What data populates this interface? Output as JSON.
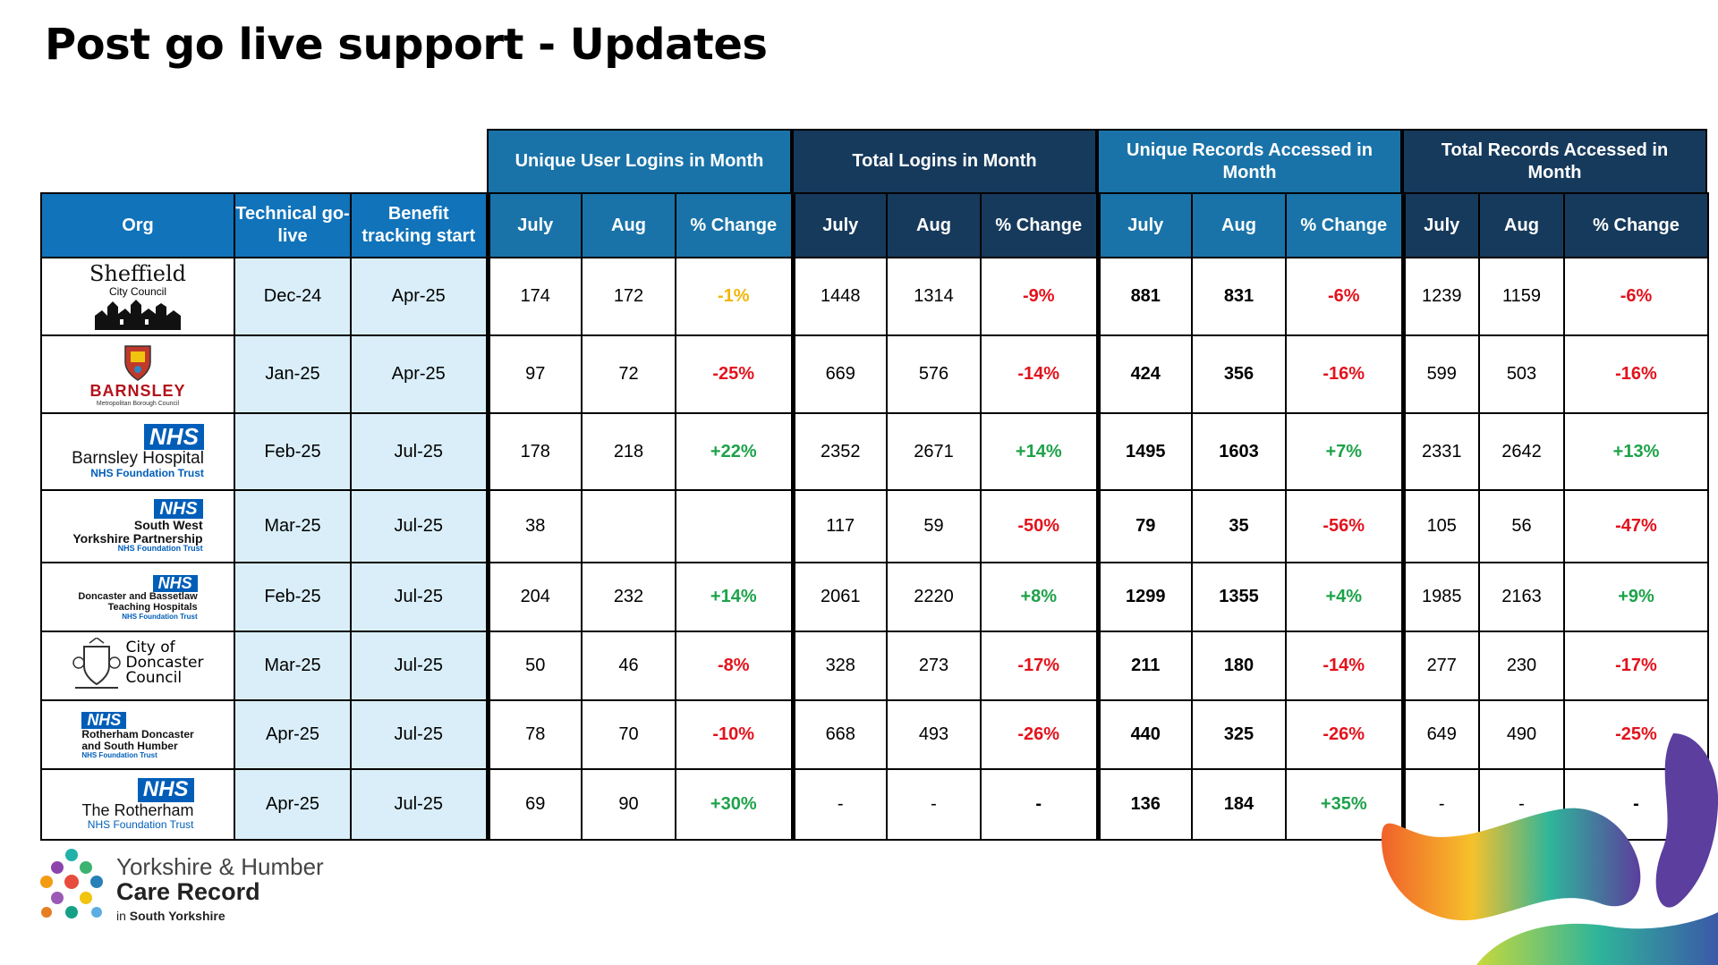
{
  "title": "Post go live support - Updates",
  "groups": {
    "unique_logins": "Unique User Logins in Month",
    "total_logins": "Total Logins in Month",
    "unique_records": "Unique Records Accessed in Month",
    "total_records": "Total Records Accessed in Month"
  },
  "columns": {
    "org": "Org",
    "technical": "Technical go-live",
    "benefit": "Benefit tracking start",
    "july": "July",
    "aug": "Aug",
    "change": "% Change"
  },
  "rows": [
    {
      "logo": {
        "line1": "Sheffield",
        "line2": "City Council"
      },
      "tech": "Dec-24",
      "benefit": "Apr-25",
      "ul_jul": "174",
      "ul_aug": "172",
      "ul_chg": "-1%",
      "tl_jul": "1448",
      "tl_aug": "1314",
      "tl_chg": "-9%",
      "ur_jul": "881",
      "ur_aug": "831",
      "ur_chg": "-6%",
      "tr_jul": "1239",
      "tr_aug": "1159",
      "tr_chg": "-6%"
    },
    {
      "logo": {
        "line1": "BARNSLEY",
        "line2": "Metropolitan Borough Council"
      },
      "tech": "Jan-25",
      "benefit": "Apr-25",
      "ul_jul": "97",
      "ul_aug": "72",
      "ul_chg": "-25%",
      "tl_jul": "669",
      "tl_aug": "576",
      "tl_chg": "-14%",
      "ur_jul": "424",
      "ur_aug": "356",
      "ur_chg": "-16%",
      "tr_jul": "599",
      "tr_aug": "503",
      "tr_chg": "-16%"
    },
    {
      "logo": {
        "nhs": "NHS",
        "line1": "Barnsley Hospital",
        "line2": "NHS Foundation Trust"
      },
      "tech": "Feb-25",
      "benefit": "Jul-25",
      "ul_jul": "178",
      "ul_aug": "218",
      "ul_chg": "+22%",
      "tl_jul": "2352",
      "tl_aug": "2671",
      "tl_chg": "+14%",
      "ur_jul": "1495",
      "ur_aug": "1603",
      "ur_chg": "+7%",
      "tr_jul": "2331",
      "tr_aug": "2642",
      "tr_chg": "+13%"
    },
    {
      "logo": {
        "nhs": "NHS",
        "line1": "South West",
        "line1b": "Yorkshire Partnership",
        "line2": "NHS Foundation Trust"
      },
      "tech": "Mar-25",
      "benefit": "Jul-25",
      "ul_jul": "38",
      "ul_aug": "",
      "ul_chg": "",
      "tl_jul": "117",
      "tl_aug": "59",
      "tl_chg": "-50%",
      "ur_jul": "79",
      "ur_aug": "35",
      "ur_chg": "-56%",
      "tr_jul": "105",
      "tr_aug": "56",
      "tr_chg": "-47%"
    },
    {
      "logo": {
        "nhs": "NHS",
        "line1": "Doncaster and Bassetlaw",
        "line1b": "Teaching Hospitals",
        "line2": "NHS Foundation Trust"
      },
      "tech": "Feb-25",
      "benefit": "Jul-25",
      "ul_jul": "204",
      "ul_aug": "232",
      "ul_chg": "+14%",
      "tl_jul": "2061",
      "tl_aug": "2220",
      "tl_chg": "+8%",
      "ur_jul": "1299",
      "ur_aug": "1355",
      "ur_chg": "+4%",
      "tr_jul": "1985",
      "tr_aug": "2163",
      "tr_chg": "+9%"
    },
    {
      "logo": {
        "line1": "City of",
        "line1b": "Doncaster",
        "line2": "Council"
      },
      "tech": "Mar-25",
      "benefit": "Jul-25",
      "ul_jul": "50",
      "ul_aug": "46",
      "ul_chg": "-8%",
      "tl_jul": "328",
      "tl_aug": "273",
      "tl_chg": "-17%",
      "ur_jul": "211",
      "ur_aug": "180",
      "ur_chg": "-14%",
      "tr_jul": "277",
      "tr_aug": "230",
      "tr_chg": "-17%"
    },
    {
      "logo": {
        "nhs": "NHS",
        "line1": "Rotherham Doncaster",
        "line1b": "and South Humber",
        "line2": "NHS Foundation Trust"
      },
      "tech": "Apr-25",
      "benefit": "Jul-25",
      "ul_jul": "78",
      "ul_aug": "70",
      "ul_chg": "-10%",
      "tl_jul": "668",
      "tl_aug": "493",
      "tl_chg": "-26%",
      "ur_jul": "440",
      "ur_aug": "325",
      "ur_chg": "-26%",
      "tr_jul": "649",
      "tr_aug": "490",
      "tr_chg": "-25%"
    },
    {
      "logo": {
        "nhs": "NHS",
        "line1": "The Rotherham",
        "line2": "NHS Foundation Trust"
      },
      "tech": "Apr-25",
      "benefit": "Jul-25",
      "ul_jul": "69",
      "ul_aug": "90",
      "ul_chg": "+30%",
      "tl_jul": "-",
      "tl_aug": "-",
      "tl_chg": "-",
      "ur_jul": "136",
      "ur_aug": "184",
      "ur_chg": "+35%",
      "tr_jul": "-",
      "tr_aug": "-",
      "tr_chg": "-"
    }
  ],
  "brand": {
    "line1": "Yorkshire & Humber",
    "line2": "Care Record",
    "line3_prefix": "in",
    "line3_bold": "South Yorkshire"
  },
  "colors": {
    "positive": "#1ea24a",
    "negative": "#e3121c",
    "neutral_warning": "#f2b60a",
    "header_light": "#1173ba",
    "header_dark": "#163a5c",
    "tinted_cell": "#d9eef8",
    "nhs_blue": "#005eb8"
  }
}
